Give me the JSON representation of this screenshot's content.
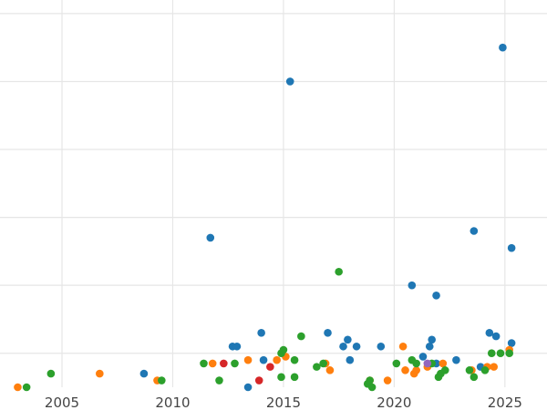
{
  "chart_data": {
    "type": "scatter",
    "title": "",
    "xlabel": "",
    "ylabel": "",
    "xlim": [
      2002.2,
      2026.9
    ],
    "ylim": [
      0.5,
      6.2
    ],
    "grid": true,
    "legend": "none",
    "x_ticks": [
      "2005",
      "2010",
      "2015",
      "2020",
      "2025"
    ],
    "series": [
      {
        "color": "#1f77b4",
        "points": [
          [
            2008.7,
            0.7
          ],
          [
            2011.7,
            2.7
          ],
          [
            2012.7,
            1.1
          ],
          [
            2012.9,
            1.1
          ],
          [
            2013.4,
            0.5
          ],
          [
            2014.0,
            1.3
          ],
          [
            2014.1,
            0.9
          ],
          [
            2015.3,
            5.0
          ],
          [
            2017.0,
            1.3
          ],
          [
            2017.7,
            1.1
          ],
          [
            2017.9,
            1.2
          ],
          [
            2018.0,
            0.9
          ],
          [
            2018.3,
            1.1
          ],
          [
            2019.4,
            1.1
          ],
          [
            2020.8,
            2.0
          ],
          [
            2021.3,
            0.95
          ],
          [
            2021.6,
            1.1
          ],
          [
            2021.7,
            1.2
          ],
          [
            2021.9,
            1.85
          ],
          [
            2021.9,
            0.85
          ],
          [
            2022.8,
            0.9
          ],
          [
            2023.6,
            2.8
          ],
          [
            2023.9,
            0.8
          ],
          [
            2024.3,
            1.3
          ],
          [
            2024.6,
            1.25
          ],
          [
            2024.9,
            5.5
          ],
          [
            2025.3,
            2.55
          ],
          [
            2025.3,
            1.15
          ]
        ]
      },
      {
        "color": "#ff7f0e",
        "points": [
          [
            2003.0,
            0.5
          ],
          [
            2006.7,
            0.7
          ],
          [
            2009.3,
            0.6
          ],
          [
            2011.8,
            0.85
          ],
          [
            2013.4,
            0.9
          ],
          [
            2014.7,
            0.9
          ],
          [
            2015.1,
            0.95
          ],
          [
            2016.9,
            0.85
          ],
          [
            2017.1,
            0.75
          ],
          [
            2018.9,
            0.6
          ],
          [
            2019.7,
            0.6
          ],
          [
            2020.4,
            1.1
          ],
          [
            2020.5,
            0.75
          ],
          [
            2020.9,
            0.7
          ],
          [
            2021.0,
            0.75
          ],
          [
            2021.5,
            0.8
          ],
          [
            2022.2,
            0.85
          ],
          [
            2023.5,
            0.75
          ],
          [
            2024.2,
            0.8
          ],
          [
            2024.5,
            0.8
          ],
          [
            2025.2,
            1.05
          ]
        ]
      },
      {
        "color": "#2ca02c",
        "points": [
          [
            2003.4,
            0.5
          ],
          [
            2004.5,
            0.7
          ],
          [
            2009.5,
            0.6
          ],
          [
            2011.4,
            0.85
          ],
          [
            2012.1,
            0.6
          ],
          [
            2012.8,
            0.85
          ],
          [
            2014.9,
            1.0
          ],
          [
            2015.0,
            1.05
          ],
          [
            2014.9,
            0.65
          ],
          [
            2015.5,
            0.65
          ],
          [
            2015.5,
            0.9
          ],
          [
            2015.8,
            1.25
          ],
          [
            2016.5,
            0.8
          ],
          [
            2016.8,
            0.85
          ],
          [
            2017.5,
            2.2
          ],
          [
            2018.8,
            0.55
          ],
          [
            2018.9,
            0.6
          ],
          [
            2019.0,
            0.5
          ],
          [
            2020.1,
            0.85
          ],
          [
            2020.8,
            0.9
          ],
          [
            2021.0,
            0.85
          ],
          [
            2021.7,
            0.85
          ],
          [
            2022.0,
            0.65
          ],
          [
            2022.1,
            0.7
          ],
          [
            2022.3,
            0.75
          ],
          [
            2023.4,
            0.75
          ],
          [
            2023.6,
            0.65
          ],
          [
            2024.1,
            0.75
          ],
          [
            2024.4,
            1.0
          ],
          [
            2024.8,
            1.0
          ],
          [
            2025.2,
            1.0
          ]
        ]
      },
      {
        "color": "#d62728",
        "points": [
          [
            2012.3,
            0.85
          ],
          [
            2013.9,
            0.6
          ],
          [
            2014.4,
            0.8
          ]
        ]
      },
      {
        "color": "#9467bd",
        "points": [
          [
            2021.5,
            0.85
          ]
        ]
      }
    ]
  }
}
